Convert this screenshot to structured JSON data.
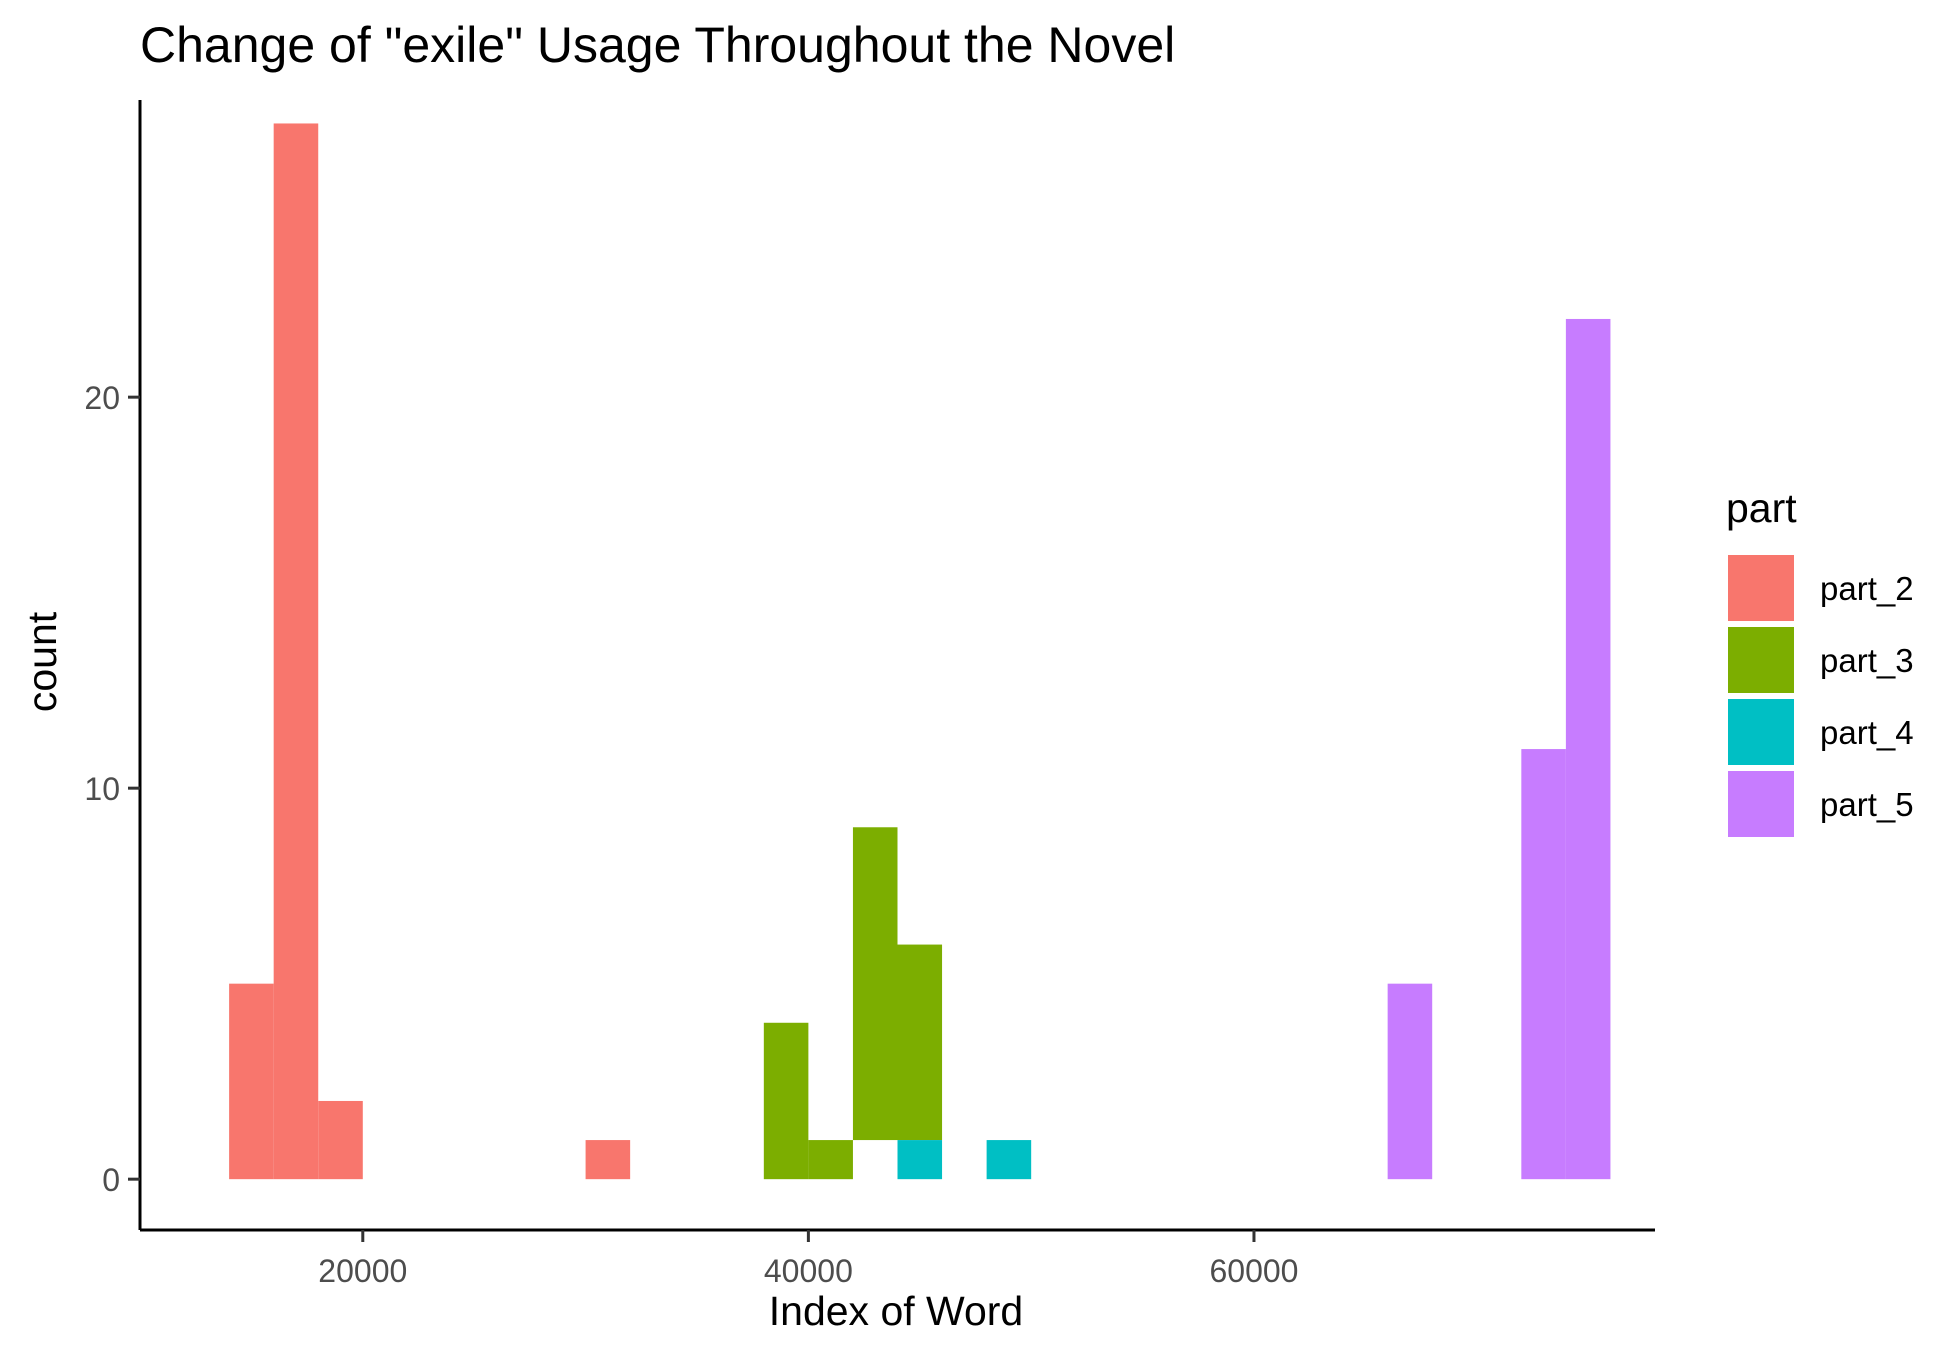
{
  "chart_data": {
    "type": "bar",
    "title": "Change of \"exile\" Usage Throughout the Novel",
    "xlabel": "Index of Word",
    "ylabel": "count",
    "xlim": [
      10000,
      78000
    ],
    "ylim": [
      -1.3,
      27.6
    ],
    "x_ticks": [
      20000,
      40000,
      60000
    ],
    "x_tick_labels": [
      "20000",
      "40000",
      "60000"
    ],
    "y_ticks": [
      0,
      10,
      20
    ],
    "y_tick_labels": [
      "0",
      "10",
      "20"
    ],
    "grid": false,
    "legend": {
      "title": "part",
      "position": "right"
    },
    "bin_width": 2000,
    "series": [
      {
        "name": "part_2",
        "color": "#F8766D",
        "bins": [
          {
            "x0": 14000,
            "x1": 16000,
            "count": 5
          },
          {
            "x0": 16000,
            "x1": 18000,
            "count": 27
          },
          {
            "x0": 18000,
            "x1": 20000,
            "count": 2
          },
          {
            "x0": 30000,
            "x1": 32000,
            "count": 1
          }
        ]
      },
      {
        "name": "part_3",
        "color": "#7CAE00",
        "bins": [
          {
            "x0": 38000,
            "x1": 40000,
            "count": 4
          },
          {
            "x0": 40000,
            "x1": 42000,
            "count": 1
          },
          {
            "x0": 42000,
            "x1": 44000,
            "count": 1
          },
          {
            "x0": 44000,
            "x1": 46000,
            "count": 8
          }
        ]
      },
      {
        "name": "part_4",
        "color": "#00BFC4",
        "bins": [
          {
            "x0": 48000,
            "x1": 50000,
            "count": 1
          }
        ]
      },
      {
        "name": "part_5",
        "color": "#C77CFF",
        "bins": [
          {
            "x0": 66000,
            "x1": 68000,
            "count": 5
          },
          {
            "x0": 72000,
            "x1": 74000,
            "count": 11
          },
          {
            "x0": 74000,
            "x1": 76000,
            "count": 22
          }
        ]
      }
    ],
    "stacked_extra": [
      {
        "series": "part_3",
        "x0": 44000,
        "x1": 46000,
        "count_bottom": 1,
        "count_top": 6
      },
      {
        "series": "part_3",
        "x0": 42000,
        "x1": 44000,
        "count_bottom": 1,
        "count_top": 9
      },
      {
        "series": "part_4",
        "x0": 44000,
        "x1": 46000,
        "count_bottom": 0,
        "count_top": 1
      }
    ]
  }
}
